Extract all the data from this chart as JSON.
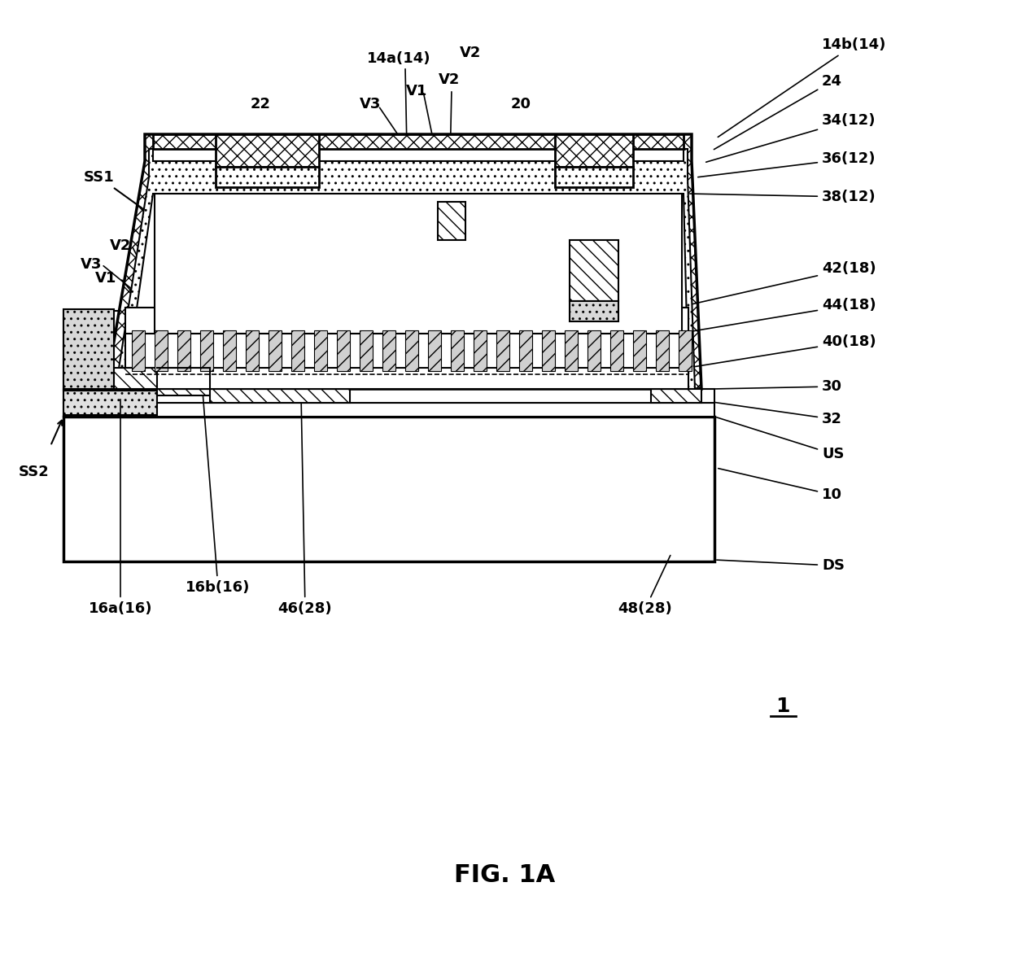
{
  "bg_color": "#ffffff",
  "lw_thick": 2.5,
  "lw_med": 2.0,
  "lw_thin": 1.5,
  "fs_label": 13,
  "fs_title": 22,
  "fs_fignum": 18,
  "title": "FIG. 1A",
  "fignum": "1",
  "right_labels": [
    [
      "14b(14)",
      1010,
      55,
      880,
      170
    ],
    [
      "24",
      1010,
      100,
      875,
      185
    ],
    [
      "34(12)",
      1010,
      148,
      865,
      200
    ],
    [
      "36(12)",
      1010,
      195,
      855,
      218
    ],
    [
      "38(12)",
      1010,
      242,
      845,
      238
    ],
    [
      "42(18)",
      1010,
      330,
      845,
      375
    ],
    [
      "44(18)",
      1010,
      375,
      845,
      408
    ],
    [
      "40(18)",
      1010,
      420,
      845,
      452
    ],
    [
      "30",
      1010,
      475,
      875,
      478
    ],
    [
      "32",
      1010,
      515,
      875,
      494
    ],
    [
      "US",
      1010,
      558,
      878,
      512
    ],
    [
      "10",
      1010,
      608,
      880,
      575
    ],
    [
      "DS",
      1010,
      695,
      878,
      688
    ]
  ]
}
